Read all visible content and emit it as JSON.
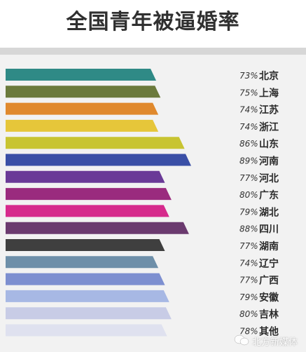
{
  "title": "全国青年被逼婚率",
  "watermark_text": "北方新媒体",
  "chart_data": {
    "type": "bar",
    "orientation": "horizontal",
    "title": "全国青年被逼婚率",
    "categories": [
      "北京",
      "上海",
      "江苏",
      "浙江",
      "山东",
      "河南",
      "河北",
      "广东",
      "湖北",
      "四川",
      "湖南",
      "辽宁",
      "广西",
      "安徽",
      "吉林",
      "其他"
    ],
    "values": [
      73,
      75,
      74,
      74,
      86,
      89,
      77,
      80,
      79,
      88,
      77,
      74,
      77,
      79,
      80,
      78
    ],
    "value_labels": [
      "73%",
      "75%",
      "74%",
      "74%",
      "86%",
      "89%",
      "77%",
      "80%",
      "79%",
      "88%",
      "77%",
      "74%",
      "77%",
      "79%",
      "80%",
      "78%"
    ],
    "colors": [
      "#2f8a86",
      "#6b7a3c",
      "#e0892d",
      "#e6c63a",
      "#c8c431",
      "#3a4fa6",
      "#6a3a97",
      "#9a2b7e",
      "#d62a8c",
      "#6b3a6f",
      "#3f3f3f",
      "#6e8fa9",
      "#7d8fd0",
      "#a7b8e4",
      "#c8cce6",
      "#dfe1ef"
    ],
    "xlim": [
      0,
      100
    ],
    "grid": false,
    "legend": "none"
  }
}
